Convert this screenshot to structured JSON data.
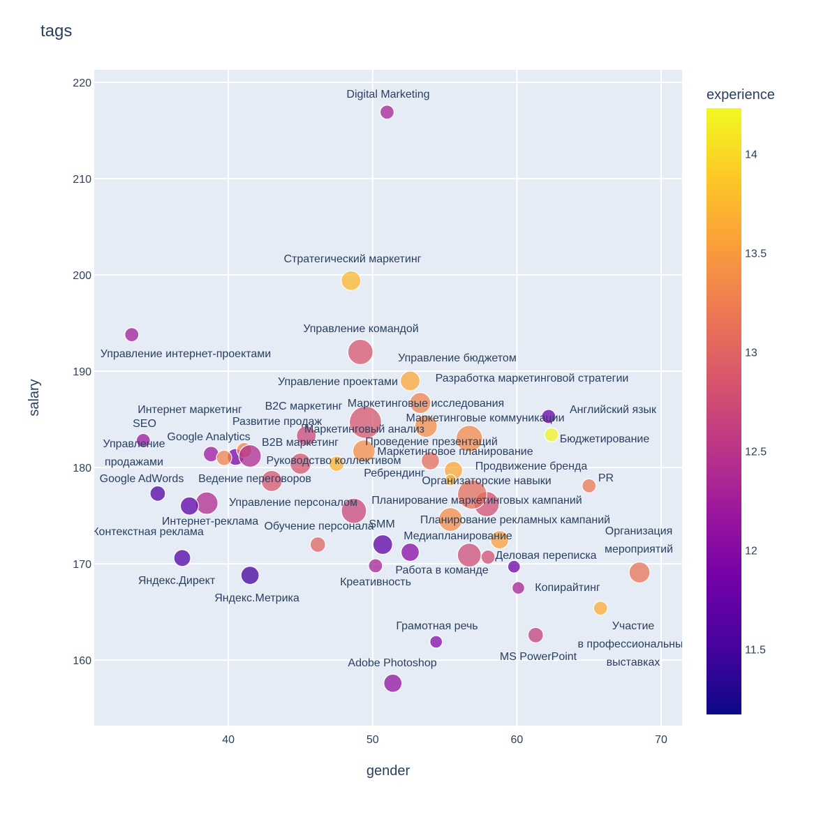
{
  "chart_data": {
    "type": "scatter",
    "title": "tags",
    "xlabel": "gender",
    "ylabel": "salary",
    "xlim": [
      30.7,
      71.45
    ],
    "ylim": [
      153.2,
      221.3
    ],
    "xticks": [
      40,
      50,
      60,
      70
    ],
    "yticks": [
      160,
      170,
      180,
      190,
      200,
      210,
      220
    ],
    "grid": true,
    "colorbar": {
      "title": "experience",
      "range": [
        11.17,
        14.23
      ],
      "ticks": [
        11.5,
        12,
        12.5,
        13,
        13.5,
        14
      ],
      "colorscale": [
        "#0d0887",
        "#46039f",
        "#7201a8",
        "#9c179e",
        "#bd3786",
        "#d8576b",
        "#ed7953",
        "#fb9f3a",
        "#fdca26",
        "#f0f921"
      ]
    },
    "points": [
      {
        "label": "Digital Marketing",
        "x": 51.0,
        "y": 216.9,
        "size": 25,
        "experience": 12.3
      },
      {
        "label": "Стратегический маркетинг",
        "x": 48.5,
        "y": 199.4,
        "size": 49,
        "experience": 13.75
      },
      {
        "label": "Управление командой",
        "x": 49.15,
        "y": 192.0,
        "size": 81,
        "experience": 12.85
      },
      {
        "label": "Управление интернет-проектами",
        "x": 33.3,
        "y": 193.8,
        "size": 25,
        "experience": 12.25
      },
      {
        "label": "Управление бюджетом",
        "x": 53.3,
        "y": 186.7,
        "size": 56,
        "experience": 13.3
      },
      {
        "label": "Управление проектами",
        "x": 52.6,
        "y": 189.0,
        "size": 49,
        "experience": 13.6
      },
      {
        "label": "Разработка маркетинговой стратегии",
        "x": 53.7,
        "y": 184.3,
        "size": 64,
        "experience": 13.4
      },
      {
        "label": "Интернет маркетинг",
        "x": 38.8,
        "y": 181.4,
        "size": 30,
        "experience": 12.2
      },
      {
        "label": "B2C маркетинг",
        "x": 49.5,
        "y": 184.7,
        "size": 132,
        "experience": 12.85
      },
      {
        "label": "Маркетинговые исследования",
        "x": 56.7,
        "y": 183.0,
        "size": 90,
        "experience": 13.35
      },
      {
        "label": "Английский язык",
        "x": 62.2,
        "y": 185.3,
        "size": 25,
        "experience": 11.8
      },
      {
        "label": "SEO",
        "x": 34.1,
        "y": 182.8,
        "size": 25,
        "experience": 12.2
      },
      {
        "label": "Развитие продаж",
        "x": 45.4,
        "y": 183.3,
        "size": 49,
        "experience": 12.7
      },
      {
        "label": "Маркетинговые коммуникации",
        "x": 54.0,
        "y": 180.7,
        "size": 42,
        "experience": 13.1
      },
      {
        "label": "Маркетинговый анализ",
        "x": 49.4,
        "y": 181.7,
        "size": 64,
        "experience": 13.4
      },
      {
        "label": "Управление\nпродажами",
        "x": 40.5,
        "y": 181.1,
        "size": 36,
        "experience": 11.9
      },
      {
        "label": "Google Analytics",
        "x": 39.7,
        "y": 181.0,
        "size": 30,
        "experience": 13.3
      },
      {
        "label": "B2B маркетинг",
        "x": 41.1,
        "y": 181.8,
        "size": 30,
        "experience": 13.3
      },
      {
        "label": "Проведение презентаций",
        "x": 55.6,
        "y": 179.7,
        "size": 42,
        "experience": 13.6
      },
      {
        "label": "Бюджетирование",
        "x": 62.4,
        "y": 183.4,
        "size": 25,
        "experience": 14.2
      },
      {
        "label": "Маркетинговое планирование",
        "x": 55.4,
        "y": 178.7,
        "size": 16,
        "experience": 13.7
      },
      {
        "label": "Руководство коллективом",
        "x": 45.0,
        "y": 180.4,
        "size": 56,
        "experience": 12.85
      },
      {
        "label": "Продвижение бренда",
        "x": 57.9,
        "y": 176.2,
        "size": 81,
        "experience": 12.8
      },
      {
        "label": "Ребрендинг",
        "x": 47.5,
        "y": 180.4,
        "size": 30,
        "experience": 13.7
      },
      {
        "label": "PR",
        "x": 65.0,
        "y": 178.1,
        "size": 25,
        "experience": 13.2
      },
      {
        "label": "Google AdWords",
        "x": 35.1,
        "y": 177.3,
        "size": 30,
        "experience": 11.6
      },
      {
        "label": "Ведение переговоров",
        "x": 43.0,
        "y": 178.6,
        "size": 56,
        "experience": 12.85
      },
      {
        "label": "Организаторские навыки",
        "x": 56.9,
        "y": 177.2,
        "size": 110,
        "experience": 13.1
      },
      {
        "label": "Управление персоналом",
        "x": 48.7,
        "y": 175.5,
        "size": 81,
        "experience": 12.7
      },
      {
        "label": "Планирование маркетинговых кампаний",
        "x": 55.4,
        "y": 174.6,
        "size": 72,
        "experience": 13.4
      },
      {
        "label": "Интернет-реклама",
        "x": 38.5,
        "y": 176.3,
        "size": 64,
        "experience": 12.4
      },
      {
        "label": "Планирование рекламных кампаний",
        "x": 58.8,
        "y": 172.5,
        "size": 42,
        "experience": 13.55
      },
      {
        "label": "Контекстная реклама",
        "x": 37.3,
        "y": 176.0,
        "size": 42,
        "experience": 11.7
      },
      {
        "label": "Обучение персонала",
        "x": 46.2,
        "y": 172.0,
        "size": 30,
        "experience": 13.0
      },
      {
        "label": "SMM",
        "x": 50.7,
        "y": 172.0,
        "size": 49,
        "experience": 11.7
      },
      {
        "label": "Организация\nмероприятий",
        "x": 68.5,
        "y": 169.1,
        "size": 56,
        "experience": 13.15
      },
      {
        "label": "Медиапланирование",
        "x": 56.7,
        "y": 170.9,
        "size": 72,
        "experience": 12.75
      },
      {
        "label": "Деловая переписка",
        "x": 59.8,
        "y": 169.7,
        "size": 20,
        "experience": 11.8
      },
      {
        "label": "Работа в команде",
        "x": 52.6,
        "y": 171.2,
        "size": 42,
        "experience": 12.0
      },
      {
        "label": "Креативность",
        "x": 50.2,
        "y": 169.8,
        "size": 25,
        "experience": 12.3
      },
      {
        "label": "Яндекс.Директ",
        "x": 36.8,
        "y": 170.6,
        "size": 36,
        "experience": 11.6
      },
      {
        "label": "Копирайтинг",
        "x": 60.1,
        "y": 167.5,
        "size": 20,
        "experience": 12.3
      },
      {
        "label": "Яндекс.Метрика",
        "x": 41.5,
        "y": 168.8,
        "size": 42,
        "experience": 11.5
      },
      {
        "label": "Грамотная речь",
        "x": 54.4,
        "y": 161.9,
        "size": 20,
        "experience": 12.0
      },
      {
        "label": "Участие\nв профессиональных\nвыставках",
        "x": 65.8,
        "y": 165.4,
        "size": 25,
        "experience": 13.65
      },
      {
        "label": "MS PowerPoint",
        "x": 61.3,
        "y": 162.6,
        "size": 30,
        "experience": 12.6
      },
      {
        "label": "Adobe Photoshop",
        "x": 51.4,
        "y": 157.6,
        "size": 42,
        "experience": 12.1
      },
      {
        "label": "",
        "x": 41.5,
        "y": 181.2,
        "size": 64,
        "experience": 12.4
      },
      {
        "label": "",
        "x": 58.0,
        "y": 170.7,
        "size": 25,
        "experience": 12.8
      }
    ]
  }
}
